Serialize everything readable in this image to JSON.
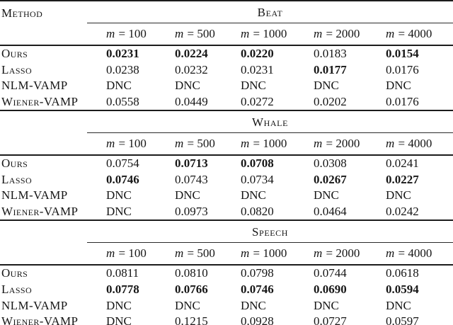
{
  "table": {
    "method_header": "Method",
    "dnc_label": "DNC",
    "text_color": "#161616",
    "rule_color": "#1c1c1c",
    "sections": [
      {
        "title": "Beat",
        "columns": [
          "m = 100",
          "m = 500",
          "m = 1000",
          "m = 2000",
          "m = 4000"
        ],
        "rows": [
          {
            "method": "Ours",
            "values": [
              "0.0231",
              "0.0224",
              "0.0220",
              "0.0183",
              "0.0154"
            ],
            "bold": [
              true,
              true,
              true,
              false,
              true
            ]
          },
          {
            "method": "Lasso",
            "values": [
              "0.0238",
              "0.0232",
              "0.0231",
              "0.0177",
              "0.0176"
            ],
            "bold": [
              false,
              false,
              false,
              true,
              false
            ]
          },
          {
            "method": "NLM-VAMP",
            "values": [
              "DNC",
              "DNC",
              "DNC",
              "DNC",
              "DNC"
            ],
            "bold": [
              false,
              false,
              false,
              false,
              false
            ]
          },
          {
            "method": "Wiener-VAMP",
            "values": [
              "0.0558",
              "0.0449",
              "0.0272",
              "0.0202",
              "0.0176"
            ],
            "bold": [
              false,
              false,
              false,
              false,
              false
            ]
          }
        ]
      },
      {
        "title": "Whale",
        "columns": [
          "m = 100",
          "m = 500",
          "m = 1000",
          "m = 2000",
          "m = 4000"
        ],
        "rows": [
          {
            "method": "Ours",
            "values": [
              "0.0754",
              "0.0713",
              "0.0708",
              "0.0308",
              "0.0241"
            ],
            "bold": [
              false,
              true,
              true,
              false,
              false
            ]
          },
          {
            "method": "Lasso",
            "values": [
              "0.0746",
              "0.0743",
              "0.0734",
              "0.0267",
              "0.0227"
            ],
            "bold": [
              true,
              false,
              false,
              true,
              true
            ]
          },
          {
            "method": "NLM-VAMP",
            "values": [
              "DNC",
              "DNC",
              "DNC",
              "DNC",
              "DNC"
            ],
            "bold": [
              false,
              false,
              false,
              false,
              false
            ]
          },
          {
            "method": "Wiener-VAMP",
            "values": [
              "DNC",
              "0.0973",
              "0.0820",
              "0.0464",
              "0.0242"
            ],
            "bold": [
              false,
              false,
              false,
              false,
              false
            ]
          }
        ]
      },
      {
        "title": "Speech",
        "columns": [
          "m = 100",
          "m = 500",
          "m = 1000",
          "m = 2000",
          "m = 4000"
        ],
        "rows": [
          {
            "method": "Ours",
            "values": [
              "0.0811",
              "0.0810",
              "0.0798",
              "0.0744",
              "0.0618"
            ],
            "bold": [
              false,
              false,
              false,
              false,
              false
            ]
          },
          {
            "method": "Lasso",
            "values": [
              "0.0778",
              "0.0766",
              "0.0746",
              "0.0690",
              "0.0594"
            ],
            "bold": [
              true,
              true,
              true,
              true,
              true
            ]
          },
          {
            "method": "NLM-VAMP",
            "values": [
              "DNC",
              "DNC",
              "DNC",
              "DNC",
              "DNC"
            ],
            "bold": [
              false,
              false,
              false,
              false,
              false
            ]
          },
          {
            "method": "Wiener-VAMP",
            "values": [
              "DNC",
              "0.1215",
              "0.0928",
              "0.0727",
              "0.0597"
            ],
            "bold": [
              false,
              false,
              false,
              false,
              false
            ]
          }
        ]
      }
    ]
  }
}
